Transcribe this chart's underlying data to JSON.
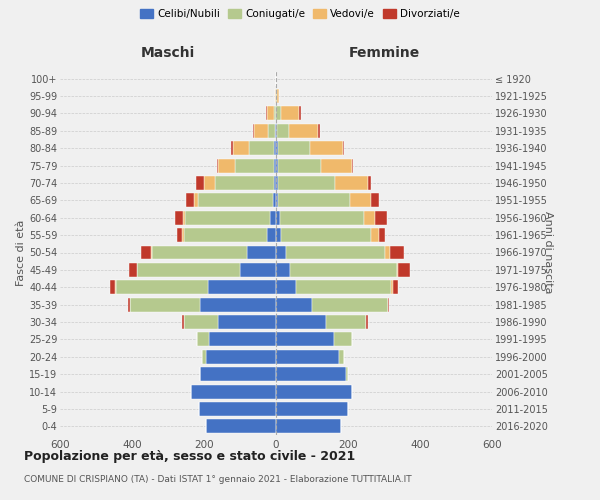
{
  "age_groups": [
    "0-4",
    "5-9",
    "10-14",
    "15-19",
    "20-24",
    "25-29",
    "30-34",
    "35-39",
    "40-44",
    "45-49",
    "50-54",
    "55-59",
    "60-64",
    "65-69",
    "70-74",
    "75-79",
    "80-84",
    "85-89",
    "90-94",
    "95-99",
    "100+"
  ],
  "birth_years": [
    "2016-2020",
    "2011-2015",
    "2006-2010",
    "2001-2005",
    "1996-2000",
    "1991-1995",
    "1986-1990",
    "1981-1985",
    "1976-1980",
    "1971-1975",
    "1966-1970",
    "1961-1965",
    "1956-1960",
    "1951-1955",
    "1946-1950",
    "1941-1945",
    "1936-1940",
    "1931-1935",
    "1926-1930",
    "1921-1925",
    "≤ 1920"
  ],
  "colors": {
    "celibe": "#4472c4",
    "coniugato": "#b5c98e",
    "vedovo": "#f0b96b",
    "divorziato": "#c0392b"
  },
  "maschi": {
    "celibe": [
      195,
      215,
      235,
      210,
      195,
      185,
      160,
      210,
      190,
      100,
      80,
      25,
      18,
      8,
      5,
      5,
      5,
      2,
      0,
      0,
      0
    ],
    "coniugato": [
      0,
      0,
      0,
      2,
      10,
      35,
      95,
      195,
      255,
      285,
      265,
      230,
      235,
      210,
      165,
      110,
      70,
      20,
      5,
      1,
      0
    ],
    "vedovo": [
      0,
      0,
      0,
      0,
      0,
      0,
      0,
      0,
      2,
      2,
      2,
      5,
      5,
      10,
      30,
      45,
      45,
      40,
      20,
      2,
      0
    ],
    "divorziato": [
      0,
      0,
      0,
      0,
      0,
      0,
      5,
      5,
      15,
      20,
      28,
      15,
      22,
      22,
      22,
      5,
      5,
      2,
      2,
      0,
      0
    ]
  },
  "femmine": {
    "nubile": [
      180,
      200,
      210,
      195,
      175,
      160,
      140,
      100,
      55,
      40,
      28,
      15,
      10,
      5,
      5,
      5,
      5,
      2,
      0,
      0,
      0
    ],
    "coniugata": [
      0,
      0,
      0,
      5,
      15,
      50,
      110,
      210,
      265,
      295,
      275,
      250,
      235,
      200,
      160,
      120,
      90,
      35,
      15,
      2,
      1
    ],
    "vedova": [
      0,
      0,
      0,
      0,
      0,
      0,
      0,
      0,
      5,
      5,
      15,
      20,
      30,
      60,
      90,
      85,
      90,
      80,
      50,
      5,
      0
    ],
    "divorziata": [
      0,
      0,
      0,
      0,
      0,
      0,
      5,
      5,
      15,
      32,
      38,
      18,
      32,
      22,
      10,
      5,
      5,
      5,
      5,
      0,
      0
    ]
  },
  "title": "Popolazione per età, sesso e stato civile - 2021",
  "subtitle": "COMUNE DI CRISPIANO (TA) - Dati ISTAT 1° gennaio 2021 - Elaborazione TUTTITALIA.IT",
  "xlabel_left": "Maschi",
  "xlabel_right": "Femmine",
  "ylabel_left": "Fasce di età",
  "ylabel_right": "Anni di nascita",
  "xlim": 600,
  "legend_labels": [
    "Celibi/Nubili",
    "Coniugati/e",
    "Vedovi/e",
    "Divorziati/e"
  ],
  "bg_color": "#f0f0f0",
  "plot_bg_color": "#f0f0f0"
}
